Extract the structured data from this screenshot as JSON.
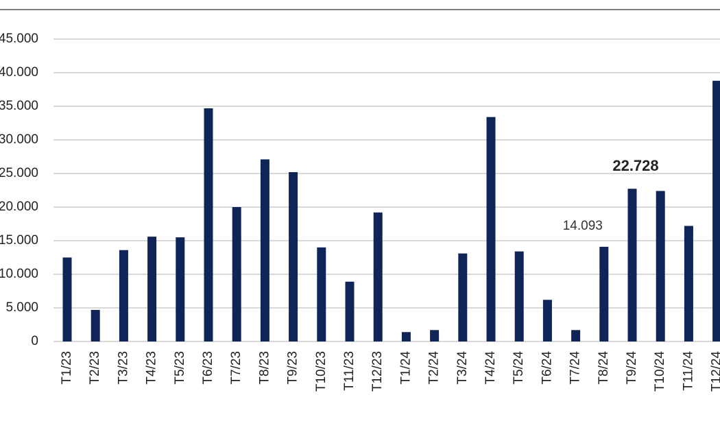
{
  "chart_data": {
    "type": "bar",
    "categories": [
      "T1/23",
      "T2/23",
      "T3/23",
      "T4/23",
      "T5/23",
      "T6/23",
      "T7/23",
      "T8/23",
      "T9/23",
      "T10/23",
      "T11/23",
      "T12/23",
      "T1/24",
      "T2/24",
      "T3/24",
      "T4/24",
      "T5/24",
      "T6/24",
      "T7/24",
      "T8/24",
      "T9/24",
      "T10/24",
      "T11/24",
      "T12/24"
    ],
    "values": [
      12500,
      4700,
      13600,
      15600,
      15500,
      34700,
      20000,
      27100,
      25200,
      14000,
      8900,
      19200,
      1400,
      1700,
      13100,
      33400,
      13400,
      6200,
      1700,
      14093,
      22728,
      22400,
      17200,
      38800
    ],
    "value_labels": [
      null,
      null,
      null,
      null,
      null,
      null,
      null,
      null,
      null,
      null,
      null,
      null,
      null,
      null,
      null,
      null,
      null,
      null,
      null,
      "14.093",
      "22.728",
      null,
      null,
      null
    ],
    "color": "#0f2557",
    "ylim": [
      0,
      45000
    ],
    "yticks": [
      0,
      {
        "value": 5000,
        "label": "5.000"
      },
      {
        "value": 10000,
        "label": "10.000"
      },
      {
        "value": 15000,
        "label": "15.000"
      },
      {
        "value": 20000,
        "label": "20.000"
      },
      {
        "value": 25000,
        "label": "25.000"
      },
      {
        "value": 30000,
        "label": "30.000"
      },
      {
        "value": 35000,
        "label": "35.000"
      },
      {
        "value": 40000,
        "label": "40.000"
      },
      {
        "value": 45000,
        "label": "45.000"
      }
    ],
    "grid": true
  }
}
